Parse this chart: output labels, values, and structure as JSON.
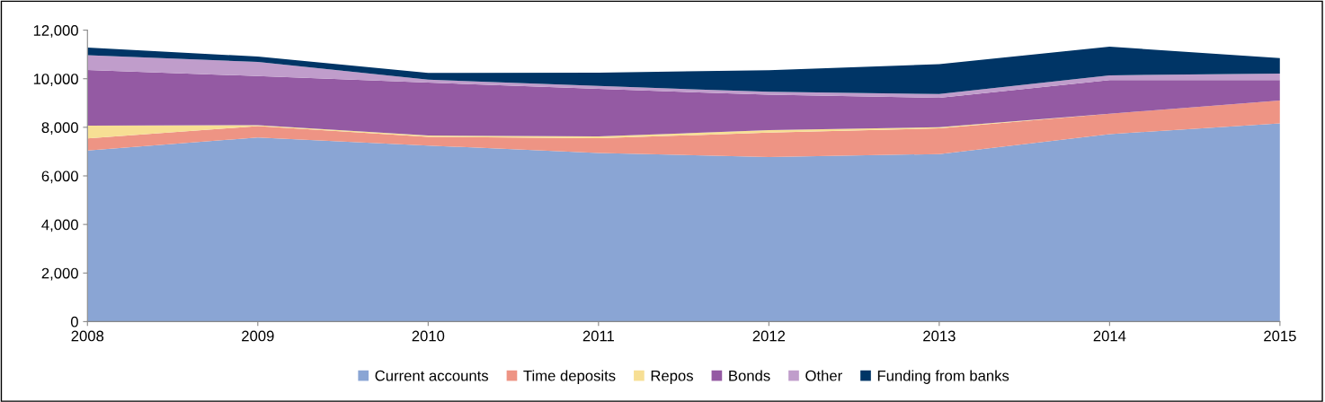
{
  "chart_data": {
    "type": "area",
    "stacked": true,
    "x": [
      2008,
      2009,
      2010,
      2011,
      2012,
      2013,
      2014,
      2015
    ],
    "xlim": [
      2008,
      2015
    ],
    "xticks": [
      2008,
      2009,
      2010,
      2011,
      2012,
      2013,
      2014,
      2015
    ],
    "ylim": [
      0,
      12000
    ],
    "yticks": [
      {
        "value": 0,
        "label": "0"
      },
      {
        "value": 2000,
        "label": "2,000"
      },
      {
        "value": 4000,
        "label": "4,000"
      },
      {
        "value": 6000,
        "label": "6,000"
      },
      {
        "value": 8000,
        "label": "8,000"
      },
      {
        "value": 10000,
        "label": "10,000"
      },
      {
        "value": 12000,
        "label": "12,000"
      }
    ],
    "grid": false,
    "legend": "bottom",
    "series": [
      {
        "name": "Current accounts",
        "color": "#8aa5d4",
        "values": [
          7040,
          7580,
          7250,
          6940,
          6780,
          6900,
          7720,
          8160
        ]
      },
      {
        "name": "Time deposits",
        "color": "#ee9484",
        "values": [
          500,
          470,
          360,
          610,
          1000,
          1060,
          840,
          940
        ]
      },
      {
        "name": "Repos",
        "color": "#f7df94",
        "values": [
          530,
          40,
          50,
          80,
          100,
          40,
          0,
          0
        ]
      },
      {
        "name": "Bonds",
        "color": "#945aa3",
        "values": [
          2290,
          2020,
          2180,
          1950,
          1460,
          1210,
          1380,
          840
        ]
      },
      {
        "name": "Other",
        "color": "#c09dcb",
        "values": [
          610,
          580,
          120,
          120,
          120,
          160,
          200,
          270
        ]
      },
      {
        "name": "Funding from banks",
        "color": "#003566",
        "values": [
          310,
          220,
          280,
          550,
          890,
          1230,
          1180,
          640
        ]
      }
    ]
  }
}
